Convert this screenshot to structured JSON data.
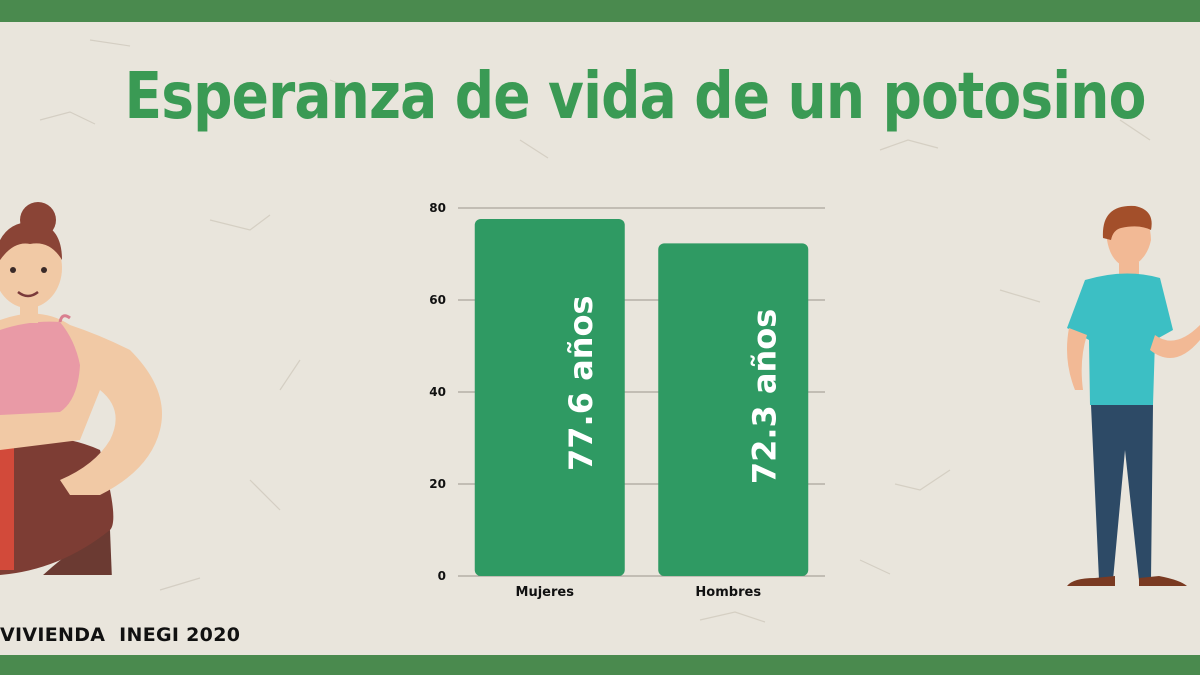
{
  "title": "Esperanza de vida de un potosino",
  "source": "VIVIENDA  INEGI 2020",
  "colors": {
    "bar": "#2f9a63",
    "title": "#3a9a54",
    "band": "#4a8a4e",
    "background": "#e9e5dc"
  },
  "chart_data": {
    "type": "bar",
    "title": "Esperanza de vida de un potosino",
    "categories": [
      "Mujeres",
      "Hombres"
    ],
    "values": [
      77.6,
      72.3
    ],
    "data_labels": [
      "77.6 años",
      "72.3 años"
    ],
    "y_ticks": [
      "0",
      "20",
      "40",
      "60",
      "80"
    ],
    "ylim": [
      0,
      80
    ],
    "grid": true,
    "xlabel": "",
    "ylabel": ""
  }
}
